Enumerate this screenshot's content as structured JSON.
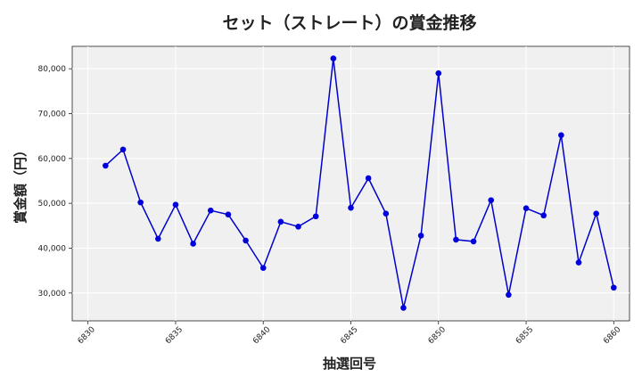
{
  "chart_data": {
    "type": "line",
    "title": "セット（ストレート）の賞金推移",
    "xlabel": "抽選回号",
    "ylabel": "賞金額（円）",
    "xlim": [
      6829.1,
      6860.9
    ],
    "ylim": [
      23800,
      85000
    ],
    "x_ticks": [
      6830,
      6835,
      6840,
      6845,
      6850,
      6855,
      6860
    ],
    "y_ticks": [
      30000,
      40000,
      50000,
      60000,
      70000,
      80000
    ],
    "x_tick_labels": [
      "6830",
      "6835",
      "6840",
      "6845",
      "6850",
      "6855",
      "6860"
    ],
    "y_tick_labels": [
      "30,000",
      "40,000",
      "50,000",
      "60,000",
      "70,000",
      "80,000"
    ],
    "grid": true,
    "background": "#f0f0f0",
    "line_color": "#0000cc",
    "marker_color": "#0000dd",
    "series": [
      {
        "x": [
          6831,
          6832,
          6833,
          6834,
          6835,
          6836,
          6837,
          6838,
          6839,
          6840,
          6841,
          6842,
          6843,
          6844,
          6845,
          6846,
          6847,
          6848,
          6849,
          6850,
          6851,
          6852,
          6853,
          6854,
          6855,
          6856,
          6857,
          6858,
          6859,
          6860
        ],
        "values": [
          58400,
          62000,
          50200,
          42100,
          49700,
          41000,
          48400,
          47500,
          41700,
          35600,
          45900,
          44800,
          47100,
          82300,
          49000,
          55600,
          47700,
          26700,
          42800,
          79000,
          41900,
          41500,
          50700,
          29600,
          48900,
          47300,
          65200,
          36800,
          47700,
          31200
        ]
      }
    ]
  }
}
